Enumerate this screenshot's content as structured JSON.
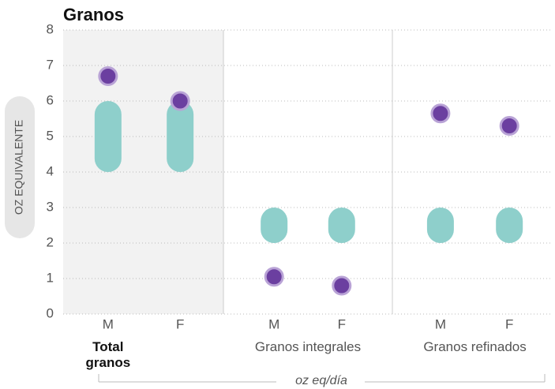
{
  "chart_data": {
    "type": "range-dot",
    "title": "Granos",
    "y_label": "OZ EQUIVALENTE",
    "x_label": "oz eq/día",
    "ylim": [
      0,
      8
    ],
    "yticks": [
      0,
      1,
      2,
      3,
      4,
      5,
      6,
      7,
      8
    ],
    "grid": true,
    "range_color": "#8ecfcb",
    "dot_color": "#6b3fa0",
    "dot_edge": "#b9a3d6",
    "highlight_fill": "#f2f2f2",
    "groups": [
      {
        "name": "Total granos",
        "highlight": true,
        "categories": [
          "M",
          "F"
        ],
        "range_low": [
          4,
          4
        ],
        "range_high": [
          6,
          6
        ],
        "values": [
          6.7,
          6.0
        ]
      },
      {
        "name": "Granos integrales",
        "highlight": false,
        "categories": [
          "M",
          "F"
        ],
        "range_low": [
          2,
          2
        ],
        "range_high": [
          3,
          3
        ],
        "values": [
          1.05,
          0.8
        ]
      },
      {
        "name": "Granos refinados",
        "highlight": false,
        "categories": [
          "M",
          "F"
        ],
        "range_low": [
          2,
          2
        ],
        "range_high": [
          3,
          3
        ],
        "values": [
          5.65,
          5.3
        ]
      }
    ]
  }
}
